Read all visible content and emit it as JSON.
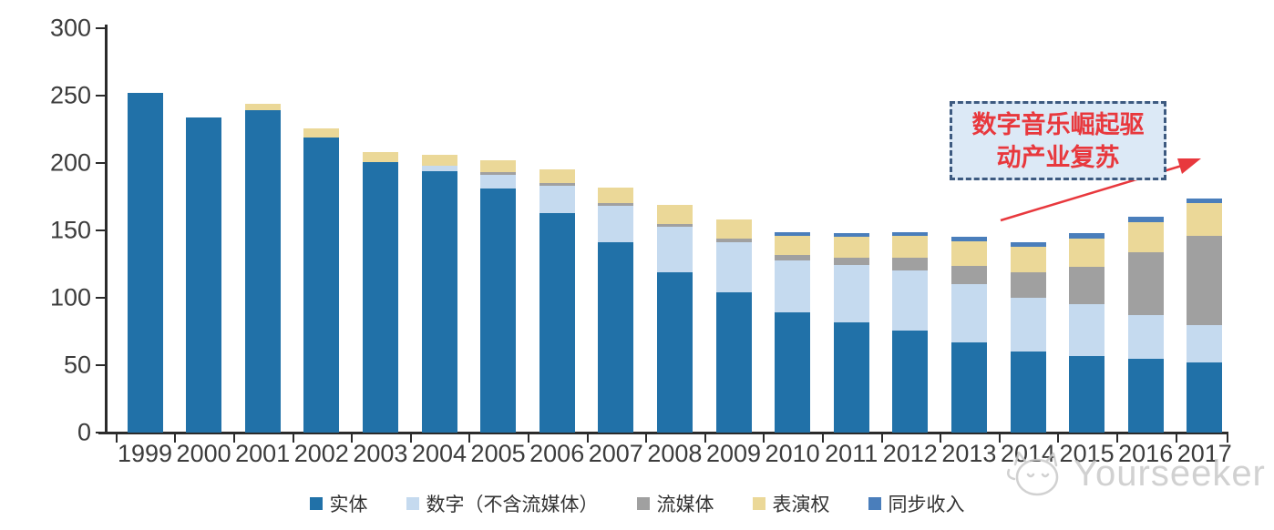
{
  "chart_data": {
    "type": "bar",
    "stacked": true,
    "title": "",
    "xlabel": "",
    "ylabel": "",
    "categories": [
      "1999",
      "2000",
      "2001",
      "2002",
      "2003",
      "2004",
      "2005",
      "2006",
      "2007",
      "2008",
      "2009",
      "2010",
      "2011",
      "2012",
      "2013",
      "2014",
      "2015",
      "2016",
      "2017"
    ],
    "series": [
      {
        "name": "实体",
        "color": "#2171A8",
        "values": [
          252,
          234,
          239,
          219,
          201,
          194,
          181,
          163,
          141,
          119,
          104,
          89,
          82,
          76,
          67,
          60,
          57,
          55,
          52
        ]
      },
      {
        "name": "数字（不含流媒体）",
        "color": "#C5DAEF",
        "values": [
          0,
          0,
          0,
          0,
          0,
          4,
          10,
          20,
          27,
          34,
          37,
          39,
          42,
          44,
          43,
          40,
          38,
          32,
          28
        ]
      },
      {
        "name": "流媒体",
        "color": "#A0A0A0",
        "values": [
          0,
          0,
          0,
          0,
          0,
          0,
          2,
          2,
          2,
          2,
          3,
          4,
          6,
          10,
          14,
          19,
          28,
          47,
          66
        ]
      },
      {
        "name": "表演权",
        "color": "#EBD898",
        "values": [
          0,
          0,
          5,
          7,
          7,
          8,
          9,
          10,
          12,
          14,
          14,
          14,
          15,
          16,
          18,
          19,
          21,
          22,
          24
        ]
      },
      {
        "name": "同步收入",
        "color": "#4A7EBB",
        "values": [
          0,
          0,
          0,
          0,
          0,
          0,
          0,
          0,
          0,
          0,
          0,
          3,
          3,
          3,
          3,
          3,
          4,
          4,
          4
        ]
      }
    ],
    "ylim": [
      0,
      300
    ],
    "yticks": [
      0,
      50,
      100,
      150,
      200,
      250,
      300
    ],
    "grid": false,
    "legend_position": "bottom"
  },
  "annotation": {
    "line1": "数字音乐崛起驱",
    "line2": "动产业复苏",
    "text_color": "#E8383D",
    "box_fill": "#DCE9F6",
    "box_border": "#3D5A80",
    "arrow_color": "#E8383D"
  },
  "watermark": {
    "text": "Yourseeker",
    "icon": "cat-icon",
    "color": "#C9C9C9"
  },
  "axis": {
    "line_color": "#2B2B2B",
    "label_color": "#3C3C3C"
  }
}
